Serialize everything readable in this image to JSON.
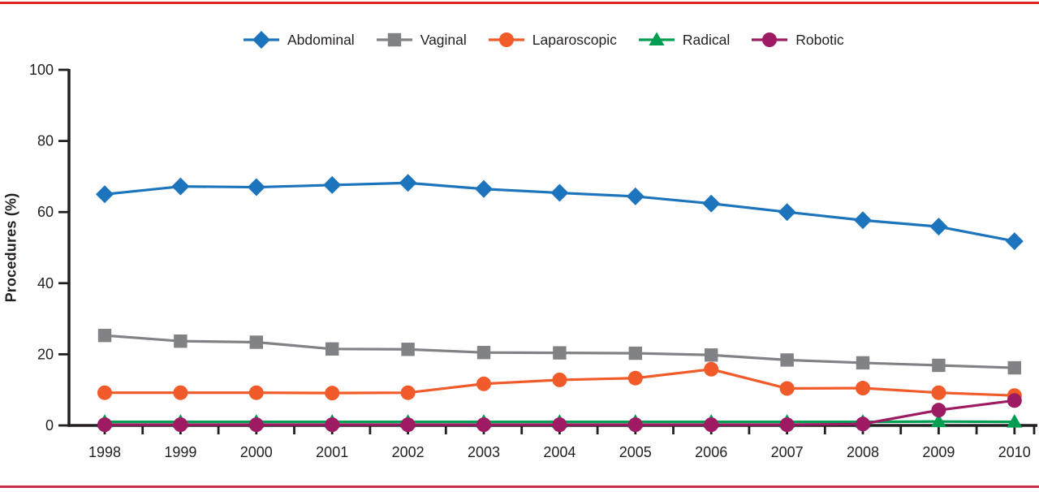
{
  "figure": {
    "background": "#FFFFFF",
    "top_border_color": "#DF2228",
    "bottom_border_color": "#C53049",
    "axis_color": "#231F20",
    "text_color": "#231F20"
  },
  "chart_data": {
    "type": "line",
    "title": "",
    "xlabel": "",
    "ylabel": "Procedures (%)",
    "ylim": [
      0,
      100
    ],
    "yticks": [
      0,
      20,
      40,
      60,
      80,
      100
    ],
    "x": [
      1998,
      1999,
      2000,
      2001,
      2002,
      2003,
      2004,
      2005,
      2006,
      2007,
      2008,
      2009,
      2010
    ],
    "grid": false,
    "legend_position": "top",
    "series": [
      {
        "name": "Abdominal",
        "marker": "diamond",
        "color": "#1C75BC",
        "values": [
          65.0,
          67.2,
          67.0,
          67.6,
          68.2,
          66.5,
          65.4,
          64.4,
          62.4,
          60.0,
          57.7,
          55.9,
          51.8
        ]
      },
      {
        "name": "Vaginal",
        "marker": "square",
        "color": "#808285",
        "values": [
          25.3,
          23.7,
          23.4,
          21.5,
          21.4,
          20.5,
          20.4,
          20.3,
          19.8,
          18.4,
          17.6,
          16.9,
          16.2
        ]
      },
      {
        "name": "Laparoscopic",
        "marker": "circle",
        "color": "#F15A29",
        "values": [
          9.2,
          9.2,
          9.2,
          9.1,
          9.2,
          11.7,
          12.8,
          13.3,
          15.8,
          10.4,
          10.5,
          9.2,
          8.4
        ]
      },
      {
        "name": "Radical",
        "marker": "triangle",
        "color": "#009E52",
        "values": [
          1.0,
          1.0,
          1.0,
          1.0,
          1.0,
          1.0,
          1.0,
          1.0,
          1.0,
          1.0,
          1.0,
          1.1,
          1.0
        ]
      },
      {
        "name": "Robotic",
        "marker": "circle",
        "color": "#9E1B64",
        "values": [
          0.2,
          0.2,
          0.2,
          0.2,
          0.2,
          0.2,
          0.2,
          0.2,
          0.2,
          0.2,
          0.4,
          4.3,
          7.0
        ]
      }
    ]
  }
}
